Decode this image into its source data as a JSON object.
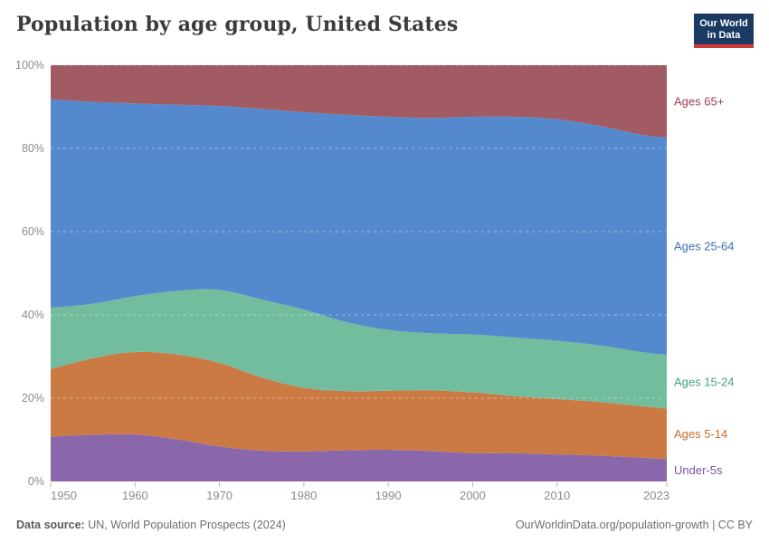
{
  "header": {
    "title": "Population by age group, United States",
    "logo": {
      "line1": "Our World",
      "line2": "in Data"
    }
  },
  "footer": {
    "data_source_label": "Data source:",
    "data_source_value": " UN, World Population Prospects (2024)",
    "attribution": "OurWorldinData.org/population-growth | CC BY"
  },
  "colors": {
    "background": "#ffffff",
    "title_text": "#3b3b3b",
    "axis_text": "#8c8c8c",
    "tick_mark": "#b5b5b5",
    "gridline": "rgba(255,255,255,0.40)",
    "logo_navy": "#1a3a63",
    "logo_red": "#cf3b3b"
  },
  "chart_data": {
    "type": "area",
    "stacked": true,
    "percent": true,
    "title": "Population by age group, United States",
    "xlabel": "",
    "ylabel": "",
    "xlim": [
      1950,
      2023
    ],
    "ylim": [
      0,
      100
    ],
    "grid": "dashed-horizontal",
    "legend": "inline-right-labels",
    "x": [
      1950,
      1955,
      1960,
      1965,
      1970,
      1975,
      1980,
      1985,
      1990,
      1995,
      2000,
      2005,
      2010,
      2015,
      2020,
      2023
    ],
    "series": [
      {
        "name": "Under-5s",
        "color": "#8a66ab",
        "label_color": "#7d4fa6",
        "values": [
          10.8,
          11.2,
          11.3,
          10.1,
          8.4,
          7.4,
          7.2,
          7.5,
          7.6,
          7.3,
          6.8,
          6.8,
          6.5,
          6.2,
          5.7,
          5.4
        ]
      },
      {
        "name": "Ages 5-14",
        "color": "#cc7a44",
        "label_color": "#c96c28",
        "values": [
          16.2,
          18.4,
          19.8,
          20.4,
          20.1,
          17.6,
          15.3,
          14.2,
          14.2,
          14.6,
          14.6,
          13.7,
          13.3,
          12.9,
          12.4,
          12.1
        ]
      },
      {
        "name": "Ages 15-24",
        "color": "#72bd9e",
        "label_color": "#43a181",
        "values": [
          14.7,
          13.1,
          13.4,
          15.3,
          17.5,
          18.7,
          18.8,
          16.6,
          14.6,
          13.7,
          13.9,
          14.1,
          14.0,
          13.6,
          13.0,
          12.9
        ]
      },
      {
        "name": "Ages 25-64",
        "color": "#548acd",
        "label_color": "#3c6fb1",
        "values": [
          50.1,
          48.5,
          46.3,
          44.7,
          44.2,
          45.8,
          47.4,
          49.8,
          51.2,
          51.7,
          52.3,
          53.0,
          53.2,
          52.7,
          52.2,
          52.2
        ]
      },
      {
        "name": "Ages 65+",
        "color": "#a25a63",
        "label_color": "#99404e",
        "values": [
          8.2,
          8.8,
          9.2,
          9.5,
          9.8,
          10.5,
          11.3,
          11.9,
          12.4,
          12.7,
          12.4,
          12.4,
          13.0,
          14.6,
          16.7,
          17.4
        ]
      }
    ],
    "x_ticks": [
      1950,
      1960,
      1970,
      1980,
      1990,
      2000,
      2010,
      2023
    ],
    "y_ticks": [
      0,
      20,
      40,
      60,
      80,
      100
    ],
    "y_tick_suffix": "%"
  }
}
